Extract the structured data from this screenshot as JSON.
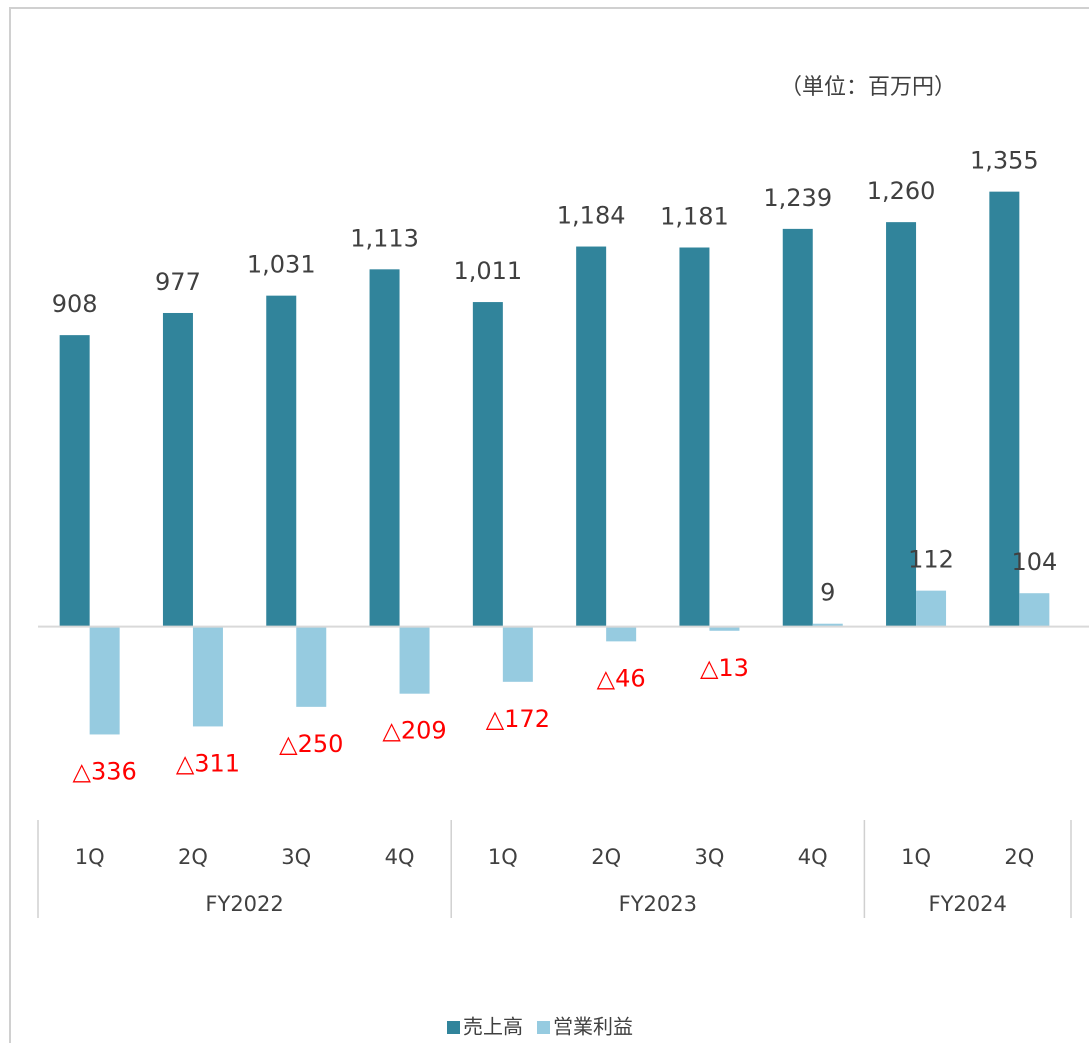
{
  "chart_data": {
    "type": "bar",
    "unit": "（単位：百万円）",
    "groups": [
      {
        "name": "FY2022",
        "categories": [
          "1Q",
          "2Q",
          "3Q",
          "4Q"
        ]
      },
      {
        "name": "FY2023",
        "categories": [
          "1Q",
          "2Q",
          "3Q",
          "4Q"
        ]
      },
      {
        "name": "FY2024",
        "categories": [
          "1Q",
          "2Q"
        ]
      }
    ],
    "series": [
      {
        "name": "売上高",
        "color": "#31849b",
        "values": [
          908,
          977,
          1031,
          1113,
          1011,
          1184,
          1181,
          1239,
          1260,
          1355
        ],
        "value_labels": [
          "908",
          "977",
          "1,031",
          "1,113",
          "1,011",
          "1,184",
          "1,181",
          "1,239",
          "1,260",
          "1,355"
        ]
      },
      {
        "name": "営業利益",
        "color": "#96cbe0",
        "values": [
          -336,
          -311,
          -250,
          -209,
          -172,
          -46,
          -13,
          9,
          112,
          104
        ],
        "value_labels": [
          "△336",
          "△311",
          "△250",
          "△209",
          "△172",
          "△46",
          "△13",
          "9",
          "112",
          "104"
        ]
      }
    ],
    "negative_label_color": "#ff0000",
    "ylim": [
      -400,
      1600
    ],
    "legend": "bottom"
  }
}
